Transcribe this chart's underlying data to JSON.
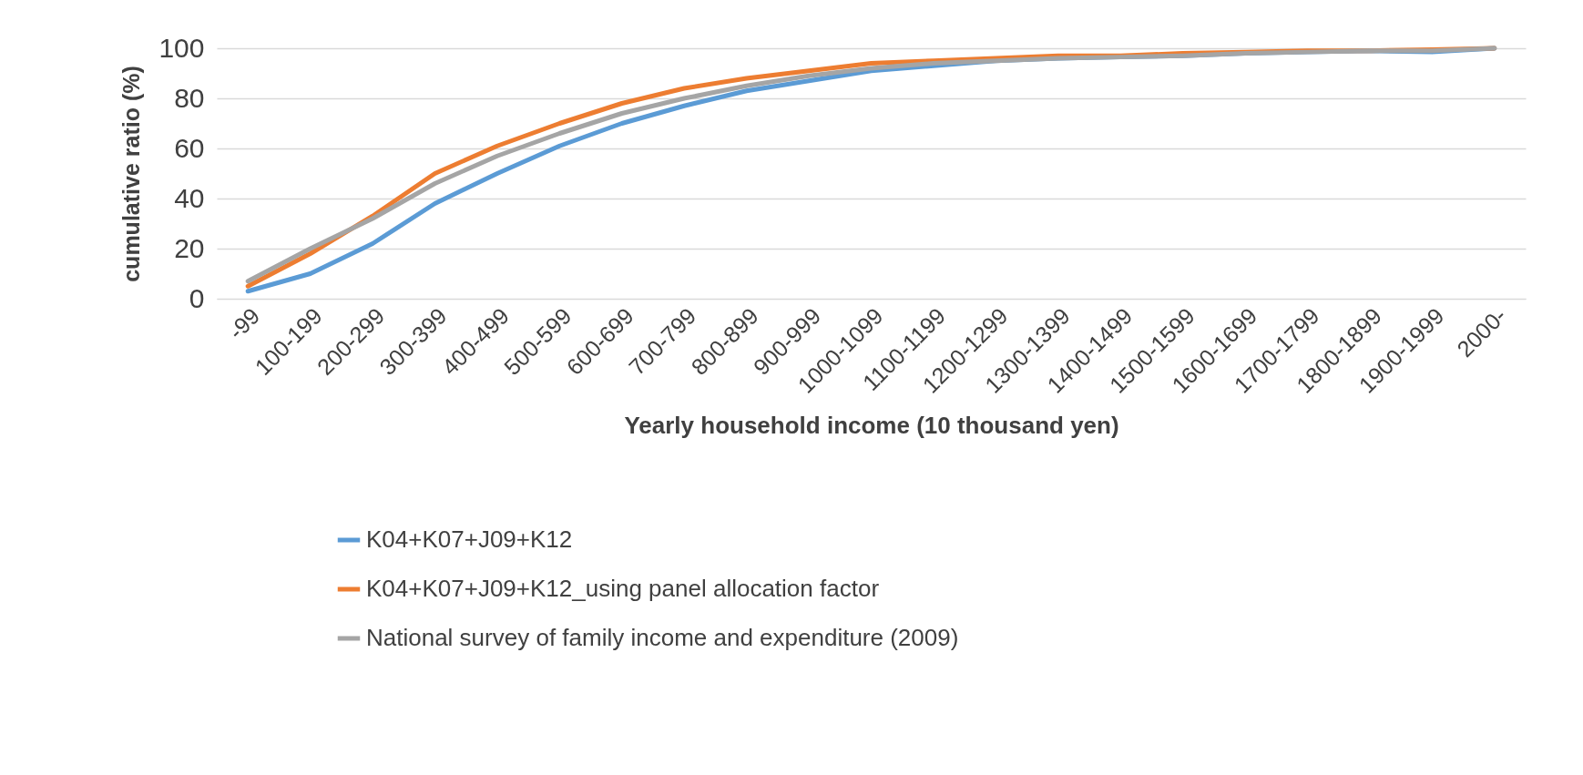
{
  "chart_data": {
    "type": "line",
    "xlabel": "Yearly household income (10 thousand yen)",
    "ylabel": "cumulative ratio (%)",
    "categories": [
      "-99",
      "100-199",
      "200-299",
      "300-399",
      "400-499",
      "500-599",
      "600-699",
      "700-799",
      "800-899",
      "900-999",
      "1000-1099",
      "1100-1199",
      "1200-1299",
      "1300-1399",
      "1400-1499",
      "1500-1599",
      "1600-1699",
      "1700-1799",
      "1800-1899",
      "1900-1999",
      "2000-"
    ],
    "series": [
      {
        "name": "K04+K07+J09+K12",
        "color": "#5b9bd5",
        "values": [
          3,
          10,
          22,
          38,
          50,
          61,
          70,
          77,
          83,
          87,
          91,
          93,
          95,
          96,
          96.5,
          97,
          98,
          98.5,
          99,
          98.5,
          100
        ]
      },
      {
        "name": "K04+K07+J09+K12_using panel allocation factor",
        "color": "#ed7d31",
        "values": [
          5,
          18,
          33,
          50,
          61,
          70,
          78,
          84,
          88,
          91,
          94,
          95,
          96,
          97,
          97,
          98,
          98.5,
          99,
          99,
          99.5,
          100
        ]
      },
      {
        "name": "National survey of family income and expenditure (2009)",
        "color": "#a5a5a5",
        "values": [
          7,
          20,
          32,
          46,
          57,
          66,
          74,
          80,
          85,
          89,
          92,
          94,
          95,
          96,
          96.5,
          97,
          98,
          98.5,
          99,
          99,
          100
        ]
      }
    ],
    "ylim": [
      0,
      100
    ],
    "yticks": [
      0,
      20,
      40,
      60,
      80,
      100
    ],
    "grid": "y",
    "legend": "bottom",
    "marker": "none",
    "line_style": "solid"
  }
}
